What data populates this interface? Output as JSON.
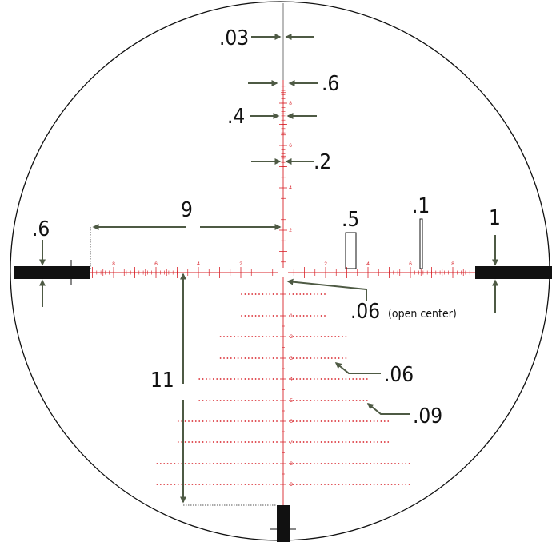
{
  "colors": {
    "reticle_red": "#d8232a",
    "arrow_green": "#4e5a44",
    "post_black": "#111111",
    "outline": "#111111"
  },
  "labels": {
    "top_line": ".03",
    "vert_06": ".6",
    "vert_04": ".4",
    "vert_02": ".2",
    "span_9": "9",
    "post_left": ".6",
    "bar_05": ".5",
    "bar_01": ".1",
    "post_right": "1",
    "center_value": ".06",
    "center_note": "(open center)",
    "dot_06": ".06",
    "dot_09": ".09",
    "span_11": "11"
  },
  "horizontal_scale_numbers": [
    "8",
    "6",
    "4",
    "2",
    "2",
    "4",
    "6",
    "8"
  ],
  "vertical_upper_numbers": [
    "8",
    "6",
    "4",
    "2"
  ],
  "vertical_lower_numbers": [
    "1",
    "2",
    "3",
    "4",
    "5",
    "6",
    "7",
    "8",
    "9"
  ]
}
